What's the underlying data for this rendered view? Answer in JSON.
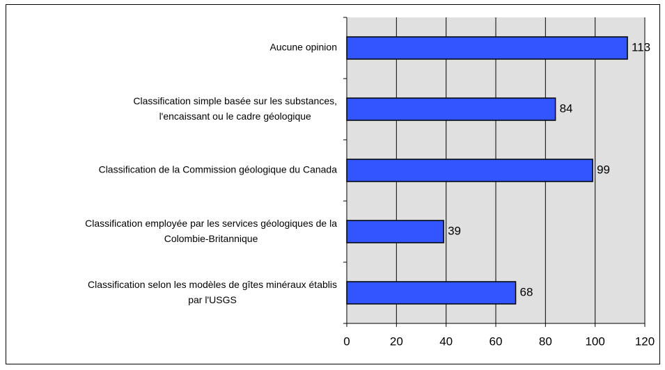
{
  "chart_data": {
    "type": "hbar",
    "categories": [
      "Aucune opinion",
      "Classification simple basée sur les substances,\nl'encaissant ou le cadre géologique",
      "Classification de la Commission géologique du Canada",
      "Classification employée par les services géologiques de la\nColombie-Britannique",
      "Classification selon les modèles de gîtes minéraux établis\npar l'USGS"
    ],
    "values": [
      113,
      84,
      99,
      39,
      68
    ],
    "color": "#3355ff",
    "xlim": [
      0,
      120
    ],
    "xticks": [
      0,
      20,
      40,
      60,
      80,
      100,
      120
    ],
    "grid": true
  }
}
